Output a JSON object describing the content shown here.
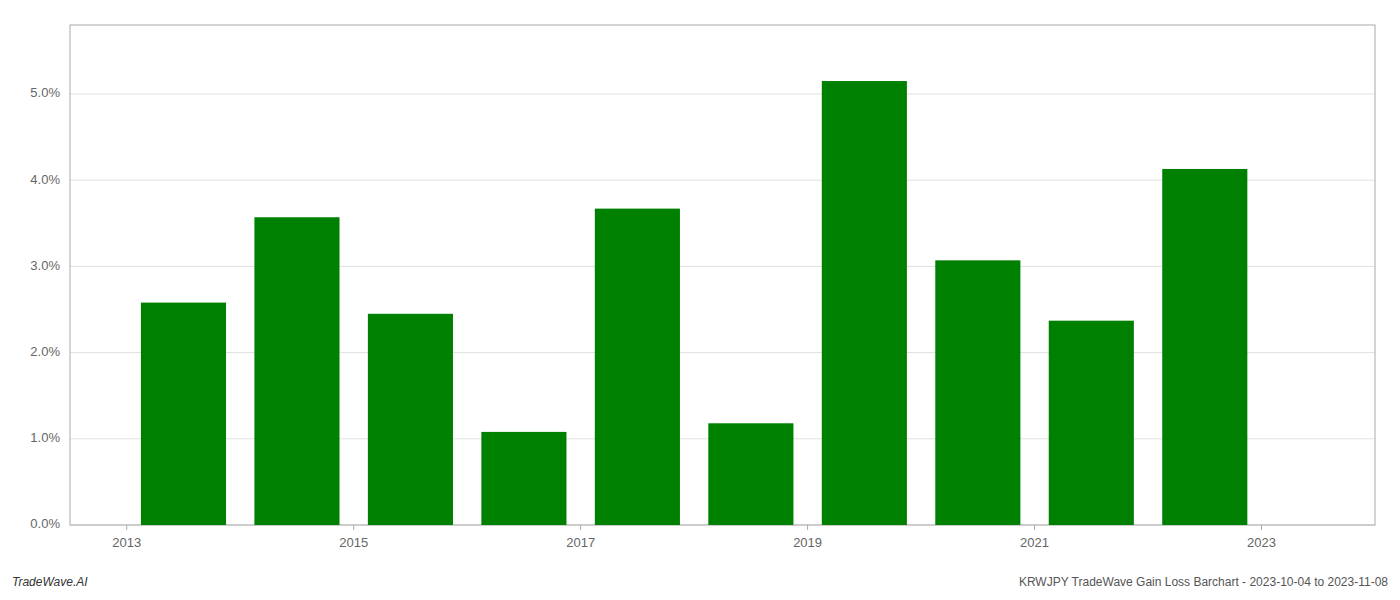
{
  "chart_data": {
    "type": "bar",
    "x": [
      2013,
      2014,
      2015,
      2016,
      2017,
      2018,
      2019,
      2020,
      2021,
      2022
    ],
    "values": [
      0.0258,
      0.0357,
      0.0245,
      0.0108,
      0.0367,
      0.0118,
      0.0515,
      0.0307,
      0.0237,
      0.0413
    ],
    "color": "#008000",
    "xlim": [
      2012.0,
      2023.5
    ],
    "xticks": [
      {
        "value": 2012.5,
        "label": "2013"
      },
      {
        "value": 2014.5,
        "label": "2015"
      },
      {
        "value": 2016.5,
        "label": "2017"
      },
      {
        "value": 2018.5,
        "label": "2019"
      },
      {
        "value": 2020.5,
        "label": "2021"
      },
      {
        "value": 2022.5,
        "label": "2023"
      }
    ],
    "ylim": [
      0,
      0.058
    ],
    "yticks": [
      {
        "value": 0.0,
        "label": "0.0%"
      },
      {
        "value": 0.01,
        "label": "1.0%"
      },
      {
        "value": 0.02,
        "label": "2.0%"
      },
      {
        "value": 0.03,
        "label": "3.0%"
      },
      {
        "value": 0.04,
        "label": "4.0%"
      },
      {
        "value": 0.05,
        "label": "5.0%"
      }
    ],
    "grid": true,
    "annotations": [
      "TradeWave.AI",
      "KRWJPY TradeWave Gain Loss Barchart - 2023-10-04 to 2023-11-08"
    ]
  }
}
